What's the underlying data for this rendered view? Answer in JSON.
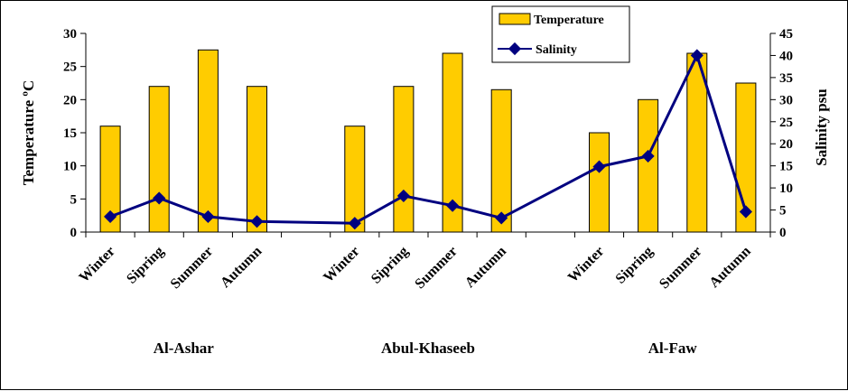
{
  "chart_data": {
    "type": "bar",
    "categories": [
      "Winter",
      "Sipring",
      "Summer",
      "Autumn",
      "Winter",
      "Sipring",
      "Summer",
      "Autumn",
      "Winter",
      "Sipring",
      "Summer",
      "Autumn"
    ],
    "groups": [
      {
        "label": "Al-Ashar",
        "categories": [
          "Winter",
          "Sipring",
          "Summer",
          "Autumn"
        ]
      },
      {
        "label": "Abul-Khaseeb",
        "categories": [
          "Winter",
          "Sipring",
          "Summer",
          "Autumn"
        ]
      },
      {
        "label": "Al-Faw",
        "categories": [
          "Winter",
          "Sipring",
          "Summer",
          "Autumn"
        ]
      }
    ],
    "series": [
      {
        "name": "Temperature",
        "type": "bar",
        "axis": "left",
        "values": [
          16,
          22,
          27.5,
          22,
          16,
          22,
          27,
          21.5,
          15,
          20,
          27,
          22.5
        ]
      },
      {
        "name": "Salinity",
        "type": "line",
        "axis": "right",
        "values": [
          3.5,
          7.7,
          3.5,
          2.4,
          2.0,
          8.2,
          6.0,
          3.2,
          14.8,
          17.2,
          40.0,
          4.6
        ]
      }
    ],
    "ylabel": "Temperature ºC",
    "y2label": "Salinity psu",
    "ylim": [
      0,
      30
    ],
    "y2lim": [
      0,
      45
    ],
    "yticks": [
      "0",
      "5",
      "10",
      "15",
      "20",
      "25",
      "30"
    ],
    "y2ticks": [
      "0",
      "5",
      "10",
      "15",
      "20",
      "25",
      "30",
      "35",
      "40",
      "45"
    ],
    "legend_position": "top-right",
    "colors": {
      "bar_fill": "#FFCC00",
      "bar_stroke": "#000000",
      "line": "#000080"
    },
    "grid": false
  }
}
